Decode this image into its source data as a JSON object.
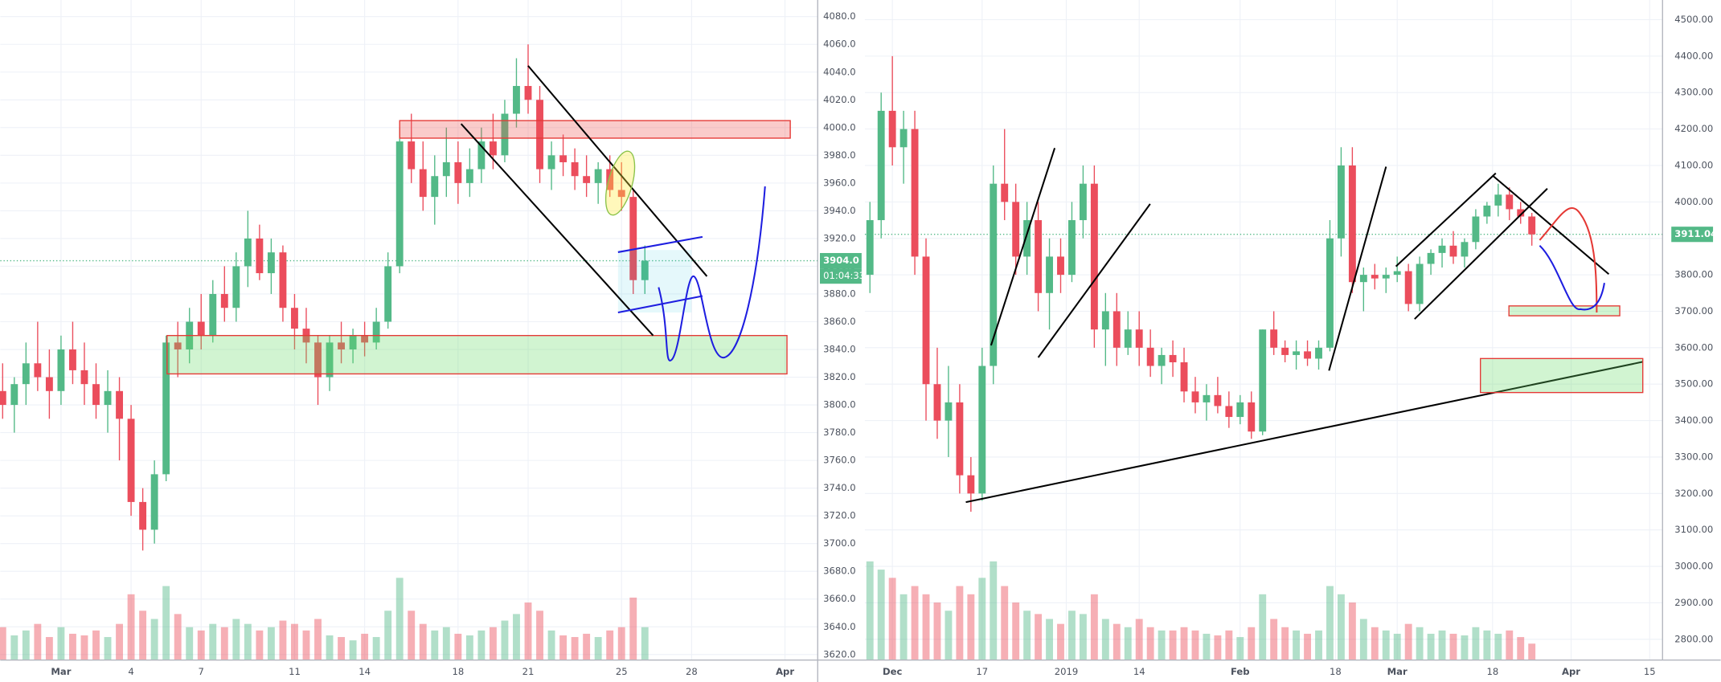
{
  "chart_data": [
    {
      "type": "candlestick",
      "up_color": "#53b987",
      "down_color": "#eb4d5c",
      "grid": true,
      "ylim": [
        3616,
        4092
      ],
      "xlim": [
        -1.6,
        33.4
      ],
      "vlim": [
        0,
        100
      ],
      "yticks": [
        {
          "value": 3620,
          "label": "3620.0"
        },
        {
          "value": 3640,
          "label": "3640.0"
        },
        {
          "value": 3660,
          "label": "3660.0"
        },
        {
          "value": 3680,
          "label": "3680.0"
        },
        {
          "value": 3700,
          "label": "3700.0"
        },
        {
          "value": 3720,
          "label": "3720.0"
        },
        {
          "value": 3740,
          "label": "3740.0"
        },
        {
          "value": 3760,
          "label": "3760.0"
        },
        {
          "value": 3780,
          "label": "3780.0"
        },
        {
          "value": 3800,
          "label": "3800.0"
        },
        {
          "value": 3820,
          "label": "3820.0"
        },
        {
          "value": 3840,
          "label": "3840.0"
        },
        {
          "value": 3860,
          "label": "3860.0"
        },
        {
          "value": 3880,
          "label": "3880.0"
        },
        {
          "value": 3900,
          "label": "3900.0"
        },
        {
          "value": 3920,
          "label": "3920.0"
        },
        {
          "value": 3940,
          "label": "3940.0"
        },
        {
          "value": 3960,
          "label": "3960.0"
        },
        {
          "value": 3980,
          "label": "3980.0"
        },
        {
          "value": 4000,
          "label": "4000.0"
        },
        {
          "value": 4020,
          "label": "4020.0"
        },
        {
          "value": 4040,
          "label": "4040.0"
        },
        {
          "value": 4060,
          "label": "4060.0"
        },
        {
          "value": 4080,
          "label": "4080.0"
        }
      ],
      "xticks": [
        {
          "value": 1,
          "label": "Mar"
        },
        4,
        7,
        11,
        14,
        18,
        21,
        25,
        28,
        {
          "value": 32,
          "label": "Apr"
        }
      ],
      "last_price": {
        "value": 3904,
        "label": "3904.0"
      },
      "countdown": "01:04:33",
      "candles": [
        [
          -1.5,
          3810,
          3830,
          3790,
          3800,
          20
        ],
        [
          -1,
          3800,
          3820,
          3780,
          3815,
          15
        ],
        [
          -0.5,
          3815,
          3845,
          3800,
          3830,
          18
        ],
        [
          0,
          3830,
          3860,
          3810,
          3820,
          22
        ],
        [
          0.5,
          3820,
          3840,
          3790,
          3810,
          14
        ],
        [
          1,
          3810,
          3850,
          3800,
          3840,
          20
        ],
        [
          1.5,
          3840,
          3860,
          3815,
          3825,
          16
        ],
        [
          2,
          3825,
          3845,
          3800,
          3815,
          15
        ],
        [
          2.5,
          3815,
          3830,
          3790,
          3800,
          18
        ],
        [
          3,
          3800,
          3825,
          3780,
          3810,
          14
        ],
        [
          3.5,
          3810,
          3820,
          3760,
          3790,
          22
        ],
        [
          4,
          3790,
          3800,
          3720,
          3730,
          40
        ],
        [
          4.5,
          3730,
          3740,
          3695,
          3710,
          30
        ],
        [
          5,
          3710,
          3760,
          3700,
          3750,
          25
        ],
        [
          5.5,
          3750,
          3850,
          3745,
          3845,
          45
        ],
        [
          6,
          3845,
          3860,
          3820,
          3840,
          28
        ],
        [
          6.5,
          3840,
          3870,
          3830,
          3860,
          20
        ],
        [
          7,
          3860,
          3880,
          3840,
          3850,
          18
        ],
        [
          7.5,
          3850,
          3890,
          3845,
          3880,
          22
        ],
        [
          8,
          3880,
          3900,
          3860,
          3870,
          20
        ],
        [
          8.5,
          3870,
          3910,
          3860,
          3900,
          25
        ],
        [
          9,
          3900,
          3940,
          3885,
          3920,
          22
        ],
        [
          9.5,
          3920,
          3930,
          3890,
          3895,
          18
        ],
        [
          10,
          3895,
          3920,
          3880,
          3910,
          20
        ],
        [
          10.5,
          3910,
          3915,
          3860,
          3870,
          24
        ],
        [
          11,
          3870,
          3880,
          3840,
          3855,
          22
        ],
        [
          11.5,
          3855,
          3870,
          3830,
          3845,
          18
        ],
        [
          12,
          3845,
          3850,
          3800,
          3820,
          25
        ],
        [
          12.5,
          3820,
          3850,
          3810,
          3845,
          15
        ],
        [
          13,
          3845,
          3860,
          3830,
          3840,
          14
        ],
        [
          13.5,
          3840,
          3855,
          3830,
          3850,
          12
        ],
        [
          14,
          3850,
          3860,
          3835,
          3845,
          16
        ],
        [
          14.5,
          3845,
          3870,
          3840,
          3860,
          14
        ],
        [
          15,
          3860,
          3910,
          3855,
          3900,
          30
        ],
        [
          15.5,
          3900,
          4000,
          3895,
          3990,
          50
        ],
        [
          16,
          3990,
          4010,
          3960,
          3970,
          30
        ],
        [
          16.5,
          3970,
          3990,
          3940,
          3950,
          22
        ],
        [
          17,
          3950,
          3980,
          3930,
          3965,
          18
        ],
        [
          17.5,
          3965,
          4000,
          3950,
          3975,
          20
        ],
        [
          18,
          3975,
          3990,
          3945,
          3960,
          16
        ],
        [
          18.5,
          3960,
          3985,
          3950,
          3970,
          15
        ],
        [
          19,
          3970,
          4000,
          3960,
          3990,
          18
        ],
        [
          19.5,
          3990,
          4010,
          3970,
          3980,
          20
        ],
        [
          20,
          3980,
          4020,
          3975,
          4010,
          24
        ],
        [
          20.5,
          4010,
          4050,
          4000,
          4030,
          28
        ],
        [
          21,
          4030,
          4060,
          4010,
          4020,
          35
        ],
        [
          21.5,
          4020,
          4030,
          3960,
          3970,
          30
        ],
        [
          22,
          3970,
          3990,
          3955,
          3980,
          18
        ],
        [
          22.5,
          3980,
          3995,
          3965,
          3975,
          15
        ],
        [
          23,
          3975,
          3985,
          3955,
          3965,
          14
        ],
        [
          23.5,
          3965,
          3980,
          3950,
          3960,
          16
        ],
        [
          24,
          3960,
          3975,
          3945,
          3970,
          14
        ],
        [
          24.5,
          3970,
          3980,
          3950,
          3955,
          18
        ],
        [
          25,
          3955,
          3975,
          3940,
          3950,
          20
        ],
        [
          25.5,
          3950,
          3955,
          3880,
          3890,
          38
        ],
        [
          26,
          3890,
          3915,
          3880,
          3904,
          20
        ]
      ]
    },
    {
      "type": "candlestick",
      "up_color": "#53b987",
      "down_color": "#eb4d5c",
      "grid": true,
      "ylim": [
        2743,
        4554
      ],
      "xlim": [
        -4.9,
        137.3
      ],
      "vlim": [
        0,
        100
      ],
      "yticks": [
        {
          "value": 2800,
          "label": "2800.00"
        },
        {
          "value": 2900,
          "label": "2900.00"
        },
        {
          "value": 3000,
          "label": "3000.00"
        },
        {
          "value": 3100,
          "label": "3100.00"
        },
        {
          "value": 3200,
          "label": "3200.00"
        },
        {
          "value": 3300,
          "label": "3300.00"
        },
        {
          "value": 3400,
          "label": "3400.00"
        },
        {
          "value": 3500,
          "label": "3500.00"
        },
        {
          "value": 3600,
          "label": "3600.00"
        },
        {
          "value": 3700,
          "label": "3700.00"
        },
        {
          "value": 3800,
          "label": "3800.00"
        },
        {
          "value": 3900,
          "label": "3900.00"
        },
        {
          "value": 4000,
          "label": "4000.00"
        },
        {
          "value": 4100,
          "label": "4100.00"
        },
        {
          "value": 4200,
          "label": "4200.00"
        },
        {
          "value": 4300,
          "label": "4300.00"
        },
        {
          "value": 4400,
          "label": "4400.00"
        },
        {
          "value": 4500,
          "label": "4500.00"
        }
      ],
      "xticks": [
        {
          "value": 0,
          "label": "Dec"
        },
        {
          "value": 16,
          "label": "17"
        },
        {
          "value": 31,
          "label": "2019"
        },
        {
          "value": 44,
          "label": "14"
        },
        {
          "value": 62,
          "label": "Feb"
        },
        {
          "value": 79,
          "label": "18"
        },
        {
          "value": 90,
          "label": "Mar"
        },
        {
          "value": 107,
          "label": "18"
        },
        {
          "value": 121,
          "label": "Apr"
        },
        {
          "value": 135,
          "label": "15"
        }
      ],
      "last_price": 3911.04,
      "candles": [
        [
          -4,
          3800,
          4000,
          3750,
          3950,
          60
        ],
        [
          -2,
          3950,
          4300,
          3900,
          4250,
          55
        ],
        [
          0,
          4250,
          4400,
          4100,
          4150,
          50
        ],
        [
          2,
          4150,
          4250,
          4050,
          4200,
          40
        ],
        [
          4,
          4200,
          4250,
          3800,
          3850,
          45
        ],
        [
          6,
          3850,
          3900,
          3400,
          3500,
          40
        ],
        [
          8,
          3500,
          3600,
          3350,
          3400,
          35
        ],
        [
          10,
          3400,
          3550,
          3300,
          3450,
          30
        ],
        [
          12,
          3450,
          3500,
          3200,
          3250,
          45
        ],
        [
          14,
          3250,
          3300,
          3150,
          3200,
          40
        ],
        [
          16,
          3200,
          3600,
          3180,
          3550,
          50
        ],
        [
          18,
          3550,
          4100,
          3500,
          4050,
          60
        ],
        [
          20,
          4050,
          4200,
          3950,
          4000,
          45
        ],
        [
          22,
          4000,
          4050,
          3800,
          3850,
          35
        ],
        [
          24,
          3850,
          4000,
          3800,
          3950,
          30
        ],
        [
          26,
          3950,
          4000,
          3700,
          3750,
          28
        ],
        [
          28,
          3750,
          3900,
          3650,
          3850,
          25
        ],
        [
          30,
          3850,
          3900,
          3750,
          3800,
          22
        ],
        [
          32,
          3800,
          4000,
          3780,
          3950,
          30
        ],
        [
          34,
          3950,
          4100,
          3900,
          4050,
          28
        ],
        [
          36,
          4050,
          4100,
          3600,
          3650,
          40
        ],
        [
          38,
          3650,
          3750,
          3550,
          3700,
          25
        ],
        [
          40,
          3700,
          3750,
          3550,
          3600,
          22
        ],
        [
          42,
          3600,
          3700,
          3580,
          3650,
          20
        ],
        [
          44,
          3650,
          3700,
          3550,
          3600,
          25
        ],
        [
          46,
          3600,
          3650,
          3520,
          3550,
          20
        ],
        [
          48,
          3550,
          3600,
          3500,
          3580,
          18
        ],
        [
          50,
          3580,
          3620,
          3520,
          3560,
          18
        ],
        [
          52,
          3560,
          3600,
          3450,
          3480,
          20
        ],
        [
          54,
          3480,
          3520,
          3420,
          3450,
          18
        ],
        [
          56,
          3450,
          3500,
          3400,
          3470,
          16
        ],
        [
          58,
          3470,
          3520,
          3420,
          3440,
          15
        ],
        [
          60,
          3440,
          3480,
          3380,
          3410,
          18
        ],
        [
          62,
          3410,
          3470,
          3390,
          3450,
          14
        ],
        [
          64,
          3450,
          3480,
          3350,
          3370,
          20
        ],
        [
          66,
          3370,
          3650,
          3360,
          3650,
          40
        ],
        [
          68,
          3650,
          3700,
          3580,
          3600,
          25
        ],
        [
          70,
          3600,
          3620,
          3560,
          3580,
          20
        ],
        [
          72,
          3580,
          3620,
          3540,
          3590,
          18
        ],
        [
          74,
          3590,
          3620,
          3550,
          3570,
          16
        ],
        [
          76,
          3570,
          3620,
          3540,
          3600,
          18
        ],
        [
          78,
          3600,
          3950,
          3590,
          3900,
          45
        ],
        [
          80,
          3900,
          4150,
          3850,
          4100,
          40
        ],
        [
          82,
          4100,
          4150,
          3750,
          3780,
          35
        ],
        [
          84,
          3780,
          3820,
          3700,
          3800,
          25
        ],
        [
          86,
          3800,
          3830,
          3760,
          3790,
          20
        ],
        [
          88,
          3790,
          3820,
          3750,
          3800,
          18
        ],
        [
          90,
          3800,
          3850,
          3780,
          3810,
          16
        ],
        [
          92,
          3810,
          3830,
          3700,
          3720,
          22
        ],
        [
          94,
          3720,
          3850,
          3700,
          3830,
          20
        ],
        [
          96,
          3830,
          3870,
          3800,
          3860,
          16
        ],
        [
          98,
          3860,
          3900,
          3820,
          3880,
          18
        ],
        [
          100,
          3880,
          3920,
          3830,
          3850,
          16
        ],
        [
          102,
          3850,
          3900,
          3820,
          3890,
          15
        ],
        [
          104,
          3890,
          3980,
          3870,
          3960,
          20
        ],
        [
          106,
          3960,
          4000,
          3940,
          3990,
          18
        ],
        [
          108,
          3990,
          4050,
          3960,
          4020,
          16
        ],
        [
          110,
          4020,
          4040,
          3950,
          3980,
          18
        ],
        [
          112,
          3980,
          4000,
          3940,
          3960,
          14
        ],
        [
          114,
          3960,
          3970,
          3880,
          3911.04,
          10
        ]
      ]
    }
  ]
}
